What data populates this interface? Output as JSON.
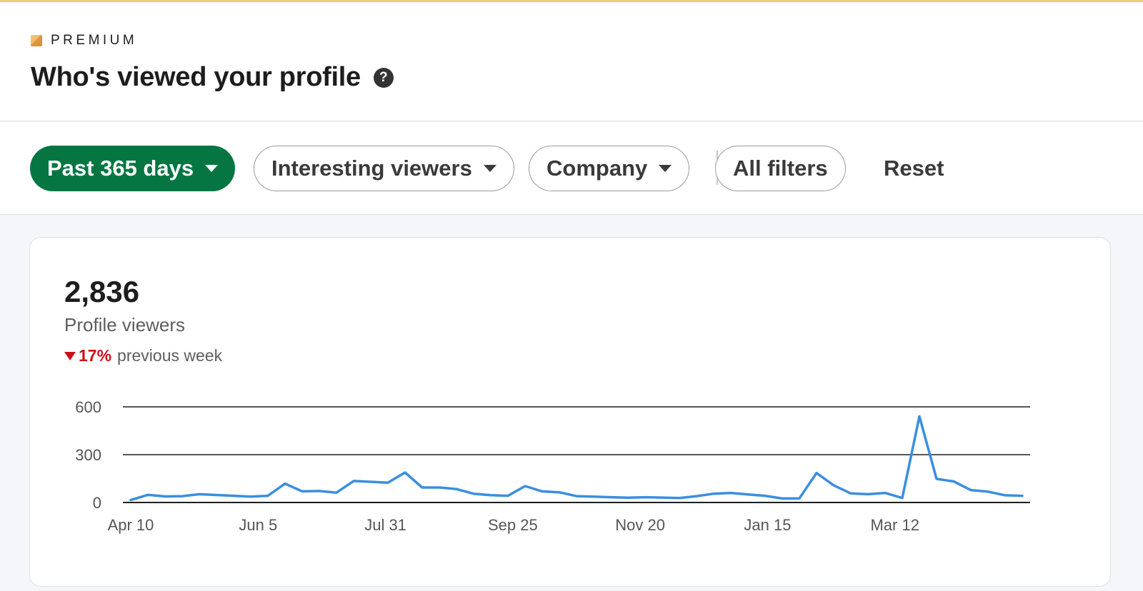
{
  "header": {
    "premium_label": "PREMIUM",
    "title": "Who's viewed your profile",
    "help_glyph": "?"
  },
  "filters": {
    "time_range": "Past 365 days",
    "interesting_viewers": "Interesting viewers",
    "company": "Company",
    "all_filters": "All filters",
    "reset": "Reset"
  },
  "summary": {
    "count": "2,836",
    "label": "Profile viewers",
    "delta_value": "17%",
    "delta_text": "previous week",
    "delta_direction": "down"
  },
  "colors": {
    "accent_green": "#057642",
    "line": "#3b8ee0",
    "negative": "#cc1016"
  },
  "chart_data": {
    "type": "line",
    "title": "",
    "xlabel": "",
    "ylabel": "",
    "ylim": [
      0,
      600
    ],
    "yticks": [
      0,
      300,
      600
    ],
    "grid": true,
    "x_tick_labels": [
      "Apr 10",
      "Jun 5",
      "Jul 31",
      "Sep 25",
      "Nov 20",
      "Jan 15",
      "Mar 12"
    ],
    "series": [
      {
        "values": [
          15,
          48,
          38,
          40,
          52,
          47,
          42,
          37,
          42,
          118,
          70,
          72,
          62,
          135,
          130,
          124,
          188,
          94,
          94,
          84,
          55,
          46,
          42,
          103,
          70,
          64,
          40,
          37,
          33,
          30,
          33,
          31,
          28,
          40,
          55,
          60,
          50,
          42,
          25,
          26,
          185,
          108,
          57,
          52,
          60,
          28,
          540,
          148,
          132,
          78,
          68,
          45,
          42
        ]
      }
    ]
  }
}
